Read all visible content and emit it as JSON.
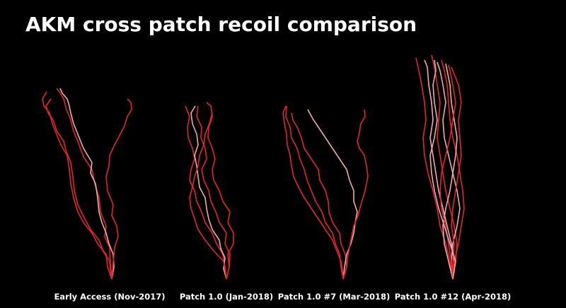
{
  "title": "AKM cross patch recoil comparison",
  "panels": [
    {
      "label": "Early Access (Nov-2017)"
    },
    {
      "label": "Patch 1.0 (Jan-2018)"
    },
    {
      "label": "Patch 1.0 #7 (Mar-2018)"
    },
    {
      "label": "Patch 1.0 #12 (Apr-2018)"
    }
  ]
}
